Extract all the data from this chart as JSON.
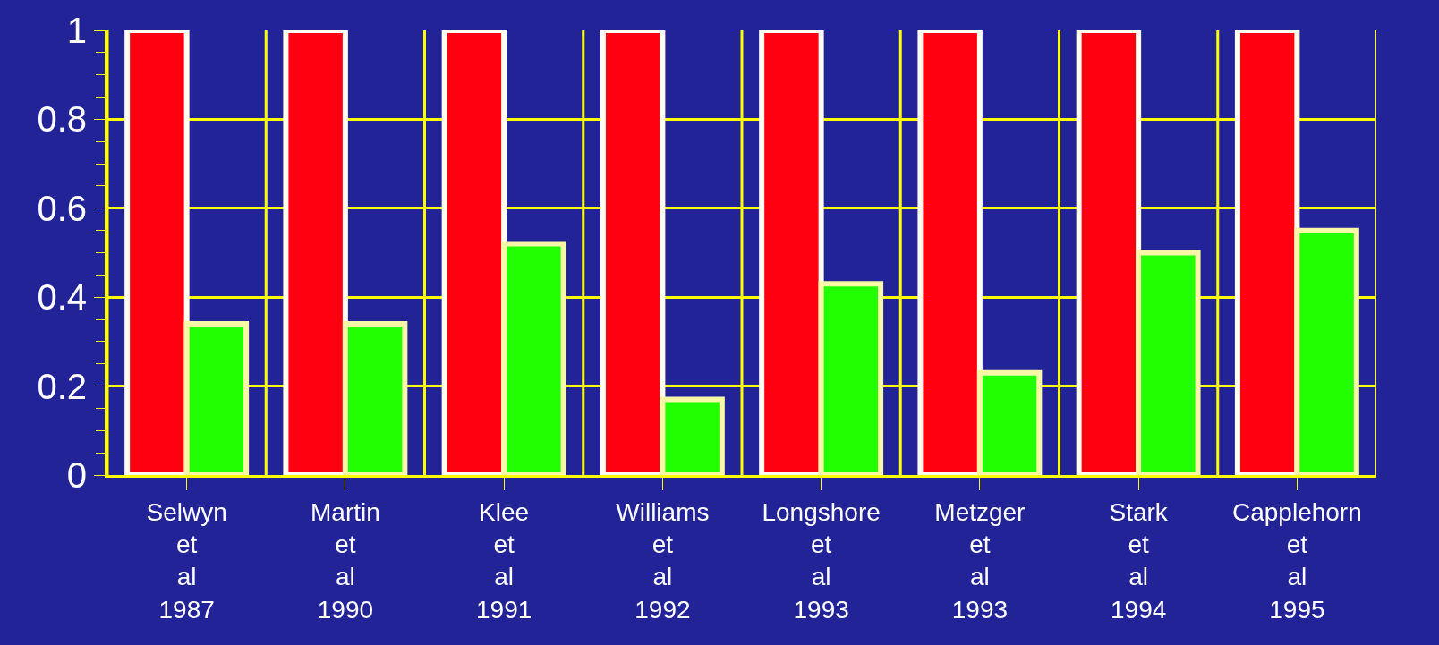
{
  "chart_data": {
    "type": "bar",
    "categories": [
      "Selwyn et al 1987",
      "Martin et al 1990",
      "Klee et al 1991",
      "Williams et al 1992",
      "Longshore et al 1993",
      "Metzger et al 1993",
      "Stark et al 1994",
      "Capplehorn et al 1995"
    ],
    "series": [
      {
        "color": "#ff0010",
        "values": [
          1,
          1,
          1,
          1,
          1,
          1,
          1,
          1
        ]
      },
      {
        "color": "#22ff00",
        "values": [
          0.34,
          0.34,
          0.52,
          0.17,
          0.43,
          0.23,
          0.5,
          0.55
        ]
      }
    ],
    "ylim": [
      0,
      1
    ],
    "yticks": [
      0,
      0.2,
      0.4,
      0.6,
      0.8,
      1
    ],
    "grid": true
  }
}
